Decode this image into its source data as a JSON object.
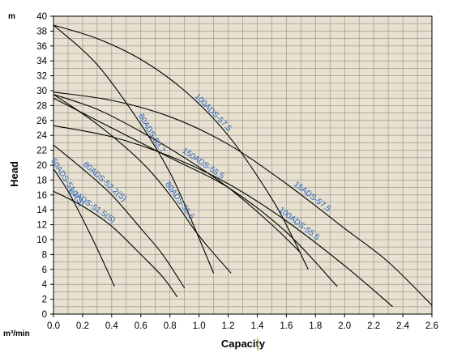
{
  "chart_data": {
    "type": "line",
    "xlabel": "Capacity",
    "ylabel": "Head",
    "x_unit": "m³/min",
    "y_unit": "m",
    "xlim": [
      0,
      2.6
    ],
    "ylim": [
      0,
      40
    ],
    "x_ticks": [
      "0.0",
      "0.2",
      "0.4",
      "0.6",
      "0.8",
      "1.0",
      "1.2",
      "1.4",
      "1.6",
      "1.8",
      "2.0",
      "2.2",
      "2.4",
      "2.6"
    ],
    "y_ticks": [
      "0",
      "2",
      "4",
      "6",
      "8",
      "10",
      "12",
      "14",
      "16",
      "18",
      "20",
      "22",
      "24",
      "26",
      "28",
      "30",
      "32",
      "34",
      "36",
      "38",
      "40"
    ],
    "grid": true,
    "colors": {
      "plot_background": "#e8e1cf",
      "grid": "#8c8c8c",
      "curve": "#000000",
      "label": "#1f5fbf"
    },
    "series": [
      {
        "name": "100ADS-57.5",
        "x": [
          0,
          0.3,
          0.6,
          0.9,
          1.2,
          1.5,
          1.65,
          1.75
        ],
        "y": [
          38.8,
          37.0,
          34.2,
          30.0,
          24.0,
          15.5,
          10.0,
          6.0
        ]
      },
      {
        "name": "80ADS-53.7",
        "x": [
          0,
          0.3,
          0.6,
          0.8,
          0.95,
          1.1
        ],
        "y": [
          38.8,
          33.5,
          25.5,
          19.0,
          12.5,
          5.5
        ]
      },
      {
        "name": "15ADS-57.5",
        "x": [
          0,
          0.4,
          0.8,
          1.2,
          1.6,
          2.0,
          2.3,
          2.6
        ],
        "y": [
          29.8,
          28.7,
          26.5,
          22.8,
          17.5,
          11.5,
          7.0,
          1.2
        ]
      },
      {
        "name": "150ADS-55.5",
        "x": [
          0,
          0.3,
          0.6,
          0.9,
          1.2,
          1.5,
          1.7
        ],
        "y": [
          29.5,
          27.5,
          24.5,
          21.0,
          17.0,
          12.0,
          8.2
        ]
      },
      {
        "name": "80ADS-55.5",
        "x": [
          0,
          0.3,
          0.6,
          0.8,
          1.0,
          1.22
        ],
        "y": [
          29.5,
          25.5,
          20.5,
          16.0,
          10.5,
          5.5
        ]
      },
      {
        "name": "100ADS-55.5",
        "x": [
          0,
          0.4,
          0.8,
          1.2,
          1.6,
          2.0,
          2.33
        ],
        "y": [
          25.3,
          23.8,
          21.2,
          17.5,
          12.5,
          6.5,
          1.0
        ]
      },
      {
        "name": "",
        "x": [
          0,
          0.4,
          0.8,
          1.2,
          1.6,
          1.95
        ],
        "y": [
          29.0,
          25.0,
          21.0,
          17.0,
          11.0,
          3.7
        ]
      },
      {
        "name": "80ADS-52.2(S)",
        "x": [
          0,
          0.2,
          0.4,
          0.6,
          0.75,
          0.9
        ],
        "y": [
          22.7,
          19.5,
          16.0,
          11.5,
          8.0,
          3.5
        ]
      },
      {
        "name": "80ADS-51.5(S)",
        "x": [
          0,
          0.2,
          0.4,
          0.6,
          0.75,
          0.85
        ],
        "y": [
          16.5,
          14.5,
          11.8,
          8.0,
          5.0,
          2.3
        ]
      },
      {
        "name": "50ADS-51.1(S)",
        "x": [
          0,
          0.1,
          0.2,
          0.3,
          0.42
        ],
        "y": [
          19.5,
          16.5,
          12.8,
          8.8,
          3.7
        ]
      }
    ]
  }
}
